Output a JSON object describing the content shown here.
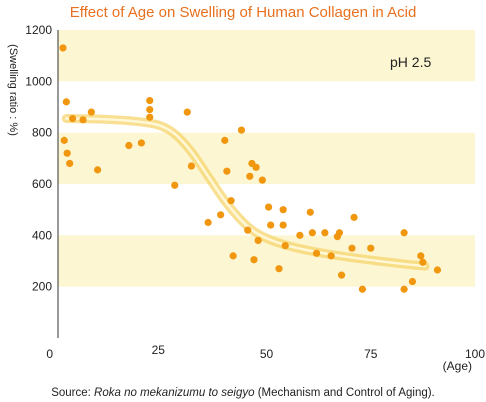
{
  "chart_data": {
    "type": "scatter",
    "title": "Effect of Age on Swelling of Human Collagen in Acid",
    "xlabel": "(Age)",
    "ylabel": "(Swelling ratio : %)",
    "xlim": [
      0,
      100
    ],
    "ylim": [
      0,
      1200
    ],
    "xticks": [
      "0",
      "50",
      "75",
      "100"
    ],
    "xtick_values": [
      0,
      50,
      75,
      100
    ],
    "yticks": [
      "200",
      "400",
      "600",
      "800",
      "1000",
      "1200"
    ],
    "ytick_values": [
      200,
      400,
      600,
      800,
      1000,
      1200
    ],
    "extra_ticks": [
      "25"
    ],
    "extra_tick_values": [
      25
    ],
    "annotation": "pH 2.5",
    "source_prefix": "Source: ",
    "source_title": "Roka no mekanizumu to seigyo",
    "source_suffix": " (Mechanism and Control of Aging).",
    "colors": {
      "title": "#e8701e",
      "points": "#f0960f",
      "band": "#fdf6d2",
      "trend": "#f5d46e"
    },
    "points": [
      {
        "x": 1.2,
        "y": 1130
      },
      {
        "x": 1.5,
        "y": 770
      },
      {
        "x": 2,
        "y": 920
      },
      {
        "x": 2.2,
        "y": 720
      },
      {
        "x": 2.8,
        "y": 680
      },
      {
        "x": 3.5,
        "y": 855
      },
      {
        "x": 6,
        "y": 850
      },
      {
        "x": 8,
        "y": 880
      },
      {
        "x": 9.5,
        "y": 655
      },
      {
        "x": 17,
        "y": 750
      },
      {
        "x": 20,
        "y": 760
      },
      {
        "x": 22,
        "y": 925
      },
      {
        "x": 22,
        "y": 890
      },
      {
        "x": 22,
        "y": 860
      },
      {
        "x": 28,
        "y": 595
      },
      {
        "x": 31,
        "y": 880
      },
      {
        "x": 32,
        "y": 670
      },
      {
        "x": 36,
        "y": 450
      },
      {
        "x": 39,
        "y": 480
      },
      {
        "x": 40,
        "y": 770
      },
      {
        "x": 40.5,
        "y": 650
      },
      {
        "x": 41.5,
        "y": 535
      },
      {
        "x": 42,
        "y": 320
      },
      {
        "x": 44,
        "y": 810
      },
      {
        "x": 45.5,
        "y": 420
      },
      {
        "x": 46,
        "y": 630
      },
      {
        "x": 46.5,
        "y": 680
      },
      {
        "x": 47,
        "y": 305
      },
      {
        "x": 47.5,
        "y": 665
      },
      {
        "x": 48,
        "y": 380
      },
      {
        "x": 49,
        "y": 615
      },
      {
        "x": 50.5,
        "y": 510
      },
      {
        "x": 51,
        "y": 440
      },
      {
        "x": 53,
        "y": 270
      },
      {
        "x": 54,
        "y": 500
      },
      {
        "x": 54,
        "y": 440
      },
      {
        "x": 54.5,
        "y": 360
      },
      {
        "x": 58,
        "y": 400
      },
      {
        "x": 60.5,
        "y": 490
      },
      {
        "x": 61,
        "y": 410
      },
      {
        "x": 62,
        "y": 330
      },
      {
        "x": 64,
        "y": 410
      },
      {
        "x": 65.5,
        "y": 320
      },
      {
        "x": 67,
        "y": 395
      },
      {
        "x": 67.5,
        "y": 410
      },
      {
        "x": 68,
        "y": 245
      },
      {
        "x": 70.5,
        "y": 350
      },
      {
        "x": 71,
        "y": 470
      },
      {
        "x": 73,
        "y": 190
      },
      {
        "x": 75,
        "y": 350
      },
      {
        "x": 83,
        "y": 410
      },
      {
        "x": 83,
        "y": 190
      },
      {
        "x": 85,
        "y": 220
      },
      {
        "x": 87,
        "y": 320
      },
      {
        "x": 87.5,
        "y": 295
      },
      {
        "x": 91,
        "y": 265
      }
    ],
    "trend": [
      {
        "x": 2,
        "y": 855
      },
      {
        "x": 10,
        "y": 853
      },
      {
        "x": 18,
        "y": 845
      },
      {
        "x": 24,
        "y": 830
      },
      {
        "x": 28,
        "y": 795
      },
      {
        "x": 32,
        "y": 725
      },
      {
        "x": 36,
        "y": 630
      },
      {
        "x": 40,
        "y": 535
      },
      {
        "x": 44,
        "y": 458
      },
      {
        "x": 48,
        "y": 405
      },
      {
        "x": 54,
        "y": 365
      },
      {
        "x": 62,
        "y": 335
      },
      {
        "x": 72,
        "y": 310
      },
      {
        "x": 82,
        "y": 290
      },
      {
        "x": 88,
        "y": 280
      }
    ]
  }
}
